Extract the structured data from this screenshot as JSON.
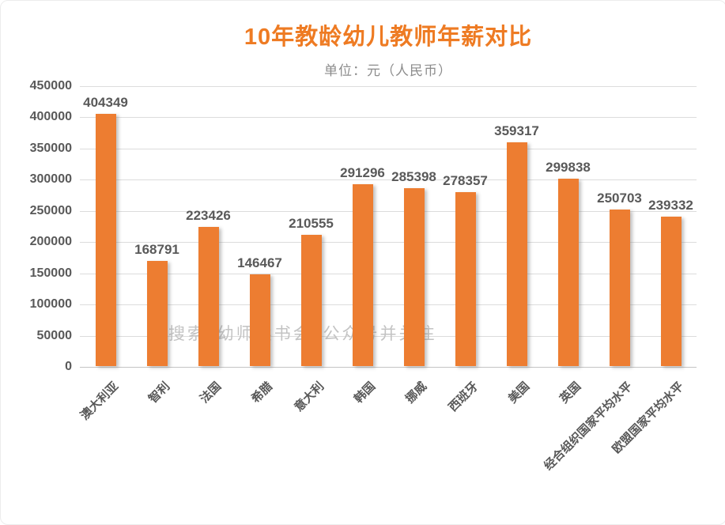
{
  "chart_data": {
    "type": "bar",
    "title": "10年教龄幼儿教师年薪对比",
    "subtitle": "单位：元（人民币）",
    "categories": [
      "澳大利亚",
      "智利",
      "法国",
      "希腊",
      "意大利",
      "韩国",
      "挪威",
      "西班牙",
      "美国",
      "英国",
      "经合组织国家平均水平",
      "欧盟国家平均水平"
    ],
    "values": [
      404349,
      168791,
      223426,
      146467,
      210555,
      291296,
      285398,
      278357,
      359317,
      299838,
      250703,
      239332
    ],
    "ylim": [
      0,
      450000
    ],
    "yticks": [
      0,
      50000,
      100000,
      150000,
      200000,
      250000,
      300000,
      350000,
      400000,
      450000
    ],
    "grid": true,
    "legend": "none",
    "xlabel": "",
    "ylabel": "",
    "watermark": "搜索“幼师读书会”公众号并关注",
    "colors": {
      "bar": "#ED7D31",
      "title": "#EE7B23",
      "axis_text": "#595959",
      "gridline": "#DCDCDC",
      "watermark_text": "#C3C3C3"
    }
  }
}
